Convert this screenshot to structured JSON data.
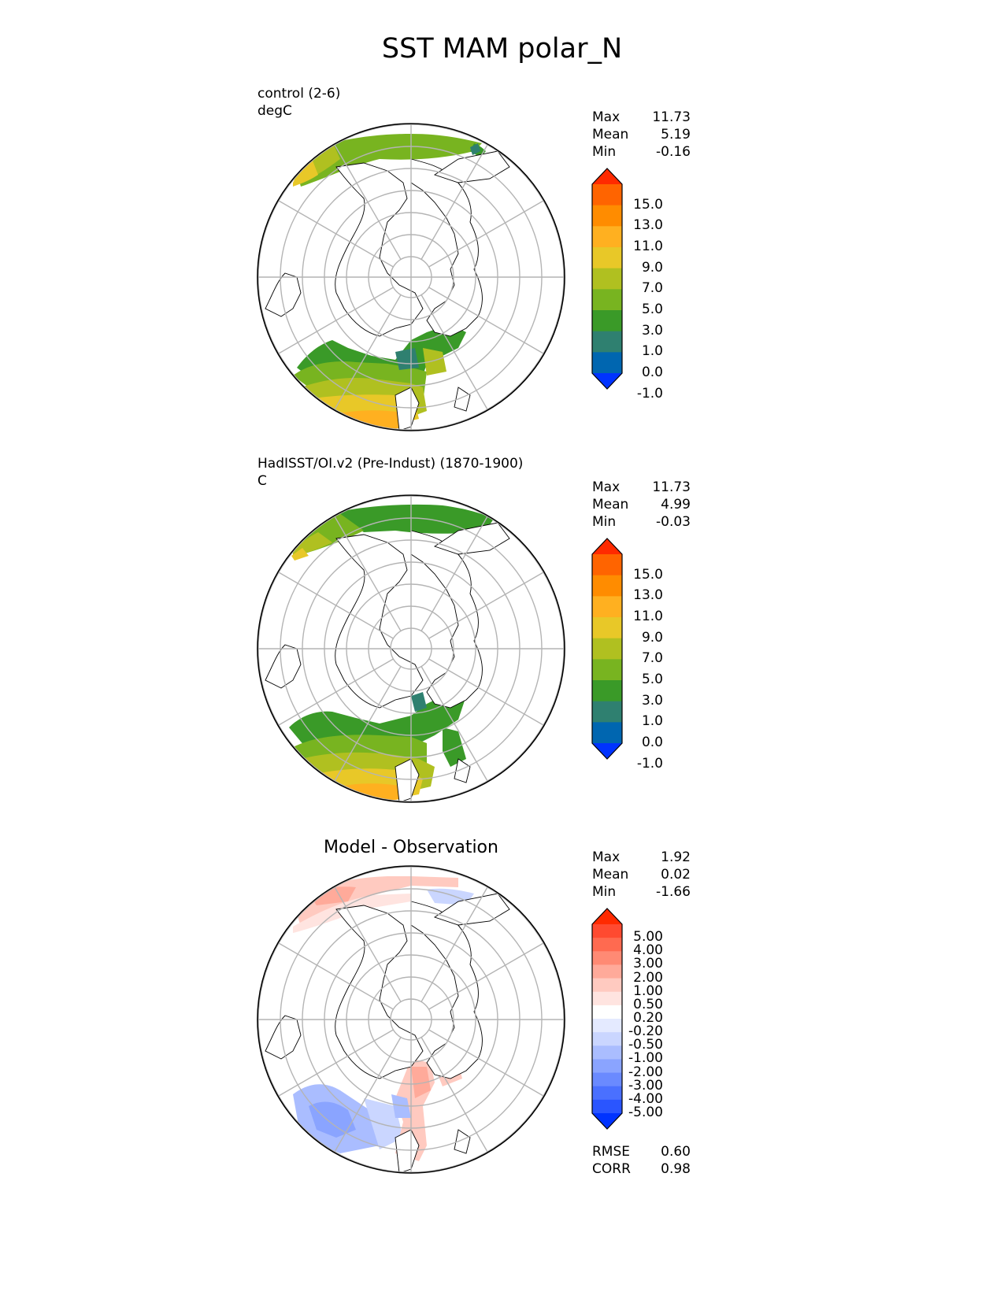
{
  "title": "SST MAM polar_N",
  "panels": [
    {
      "id": "control",
      "label_lines": [
        "control (2-6)",
        "degC"
      ],
      "center_title": "",
      "stats": [
        {
          "label": "Max",
          "value": "11.73"
        },
        {
          "label": "Mean",
          "value": "5.19"
        },
        {
          "label": "Min",
          "value": "-0.16"
        }
      ],
      "colorbar": {
        "colors": [
          "#0033ff",
          "#0066b0",
          "#2f8070",
          "#3a9a28",
          "#78b420",
          "#b0c020",
          "#e8c828",
          "#ffb020",
          "#ff8c00",
          "#ff6400",
          "#ff2a00"
        ],
        "ticks": [
          "15.0",
          "13.0",
          "11.0",
          "9.0",
          "7.0",
          "5.0",
          "3.0",
          "1.0",
          "0.0",
          "-1.0"
        ]
      },
      "field": "control"
    },
    {
      "id": "obs",
      "label_lines": [
        "HadISST/OI.v2 (Pre-Indust) (1870-1900)",
        "C"
      ],
      "center_title": "",
      "stats": [
        {
          "label": "Max",
          "value": "11.73"
        },
        {
          "label": "Mean",
          "value": "4.99"
        },
        {
          "label": "Min",
          "value": "-0.03"
        }
      ],
      "colorbar": {
        "colors": [
          "#0033ff",
          "#0066b0",
          "#2f8070",
          "#3a9a28",
          "#78b420",
          "#b0c020",
          "#e8c828",
          "#ffb020",
          "#ff8c00",
          "#ff6400",
          "#ff2a00"
        ],
        "ticks": [
          "15.0",
          "13.0",
          "11.0",
          "9.0",
          "7.0",
          "5.0",
          "3.0",
          "1.0",
          "0.0",
          "-1.0"
        ]
      },
      "field": "obs"
    },
    {
      "id": "diff",
      "label_lines": [],
      "center_title": "Model - Observation",
      "stats": [
        {
          "label": "Max",
          "value": "1.92"
        },
        {
          "label": "Mean",
          "value": "0.02"
        },
        {
          "label": "Min",
          "value": "-1.66"
        }
      ],
      "colorbar": {
        "colors": [
          "#0033ff",
          "#2a55ff",
          "#4a70ff",
          "#6a8aff",
          "#8aa4ff",
          "#aabdff",
          "#cad6ff",
          "#e4eaff",
          "#ffffff",
          "#ffe4e0",
          "#ffcac0",
          "#ffaa9a",
          "#ff8a74",
          "#ff6a50",
          "#ff4a30",
          "#ff2a00"
        ],
        "ticks": [
          "5.00",
          "4.00",
          "3.00",
          "2.00",
          "1.00",
          "0.50",
          "0.20",
          "-0.20",
          "-0.50",
          "-1.00",
          "-2.00",
          "-3.00",
          "-4.00",
          "-5.00"
        ]
      },
      "extra_stats": [
        {
          "label": "RMSE",
          "value": "0.60"
        },
        {
          "label": "CORR",
          "value": "0.98"
        }
      ],
      "field": "diff"
    }
  ]
}
